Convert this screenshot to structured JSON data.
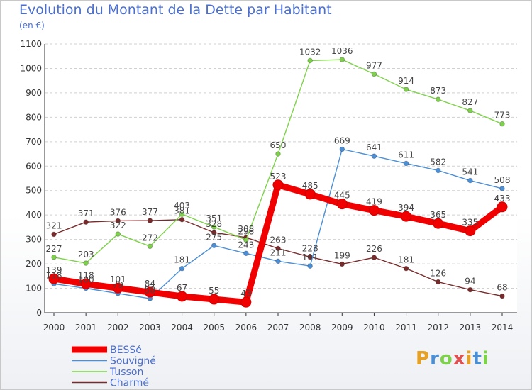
{
  "title": "Evolution du Montant de la Dette par Habitant",
  "subtitle": "(en €)",
  "logo": "Proxiti",
  "chart_data": {
    "type": "line",
    "title": "Evolution du Montant de la Dette par Habitant",
    "ylabel": "(en €)",
    "x": [
      "2000",
      "2001",
      "2002",
      "2003",
      "2004",
      "2005",
      "2006",
      "2007",
      "2008",
      "2009",
      "2010",
      "2011",
      "2012",
      "2013",
      "2014"
    ],
    "ylim": [
      0,
      1100
    ],
    "yticks": [
      "0",
      "100",
      "200",
      "300",
      "400",
      "500",
      "600",
      "700",
      "800",
      "900",
      "1000",
      "1100"
    ],
    "grid": "horizontal-dashed",
    "legend": "bottom-left",
    "series": [
      {
        "name": "BESSé",
        "color": "#f00000",
        "values": [
          139,
          118,
          101,
          84,
          67,
          55,
          43,
          523,
          485,
          445,
          419,
          394,
          365,
          335,
          433
        ],
        "labels": [
          "139",
          "118",
          "101",
          "84",
          "67",
          "55",
          "43",
          "523",
          "485",
          "445",
          "419",
          "394",
          "365",
          "335",
          "433"
        ]
      },
      {
        "name": "Souvigné",
        "color": "#4b8fd6",
        "values": [
          118,
          100,
          79,
          58,
          181,
          275,
          243,
          211,
          191,
          669,
          641,
          611,
          582,
          541,
          508
        ],
        "labels": [
          "118",
          "100",
          "79",
          "58",
          "181",
          "275",
          "243",
          "211",
          "191",
          "669",
          "641",
          "611",
          "582",
          "541",
          "508"
        ]
      },
      {
        "name": "Tusson",
        "color": "#7ed24a",
        "values": [
          227,
          203,
          322,
          272,
          403,
          351,
          298,
          650,
          1032,
          1036,
          977,
          914,
          873,
          827,
          773
        ],
        "labels": [
          "227",
          "203",
          "322",
          "272",
          "403",
          "351",
          "298",
          "650",
          "1032",
          "1036",
          "977",
          "914",
          "873",
          "827",
          "773"
        ]
      },
      {
        "name": "Charmé",
        "color": "#7a2a2a",
        "values": [
          321,
          371,
          376,
          377,
          381,
          328,
          308,
          263,
          228,
          199,
          226,
          181,
          126,
          94,
          68
        ],
        "labels": [
          "321",
          "371",
          "376",
          "377",
          "381",
          "328",
          "308",
          "263",
          "228",
          "199",
          "226",
          "181",
          "126",
          "94",
          "68"
        ]
      }
    ]
  }
}
